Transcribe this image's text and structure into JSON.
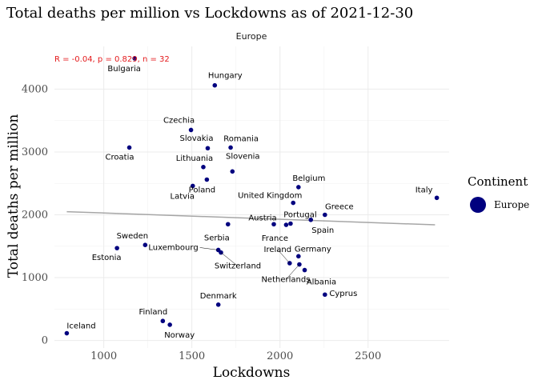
{
  "chart_data": {
    "type": "scatter",
    "title": "Total deaths per million vs Lockdowns as of 2021-12-30",
    "facet": "Europe",
    "xlabel": "Lockdowns",
    "ylabel": "Total deaths per million",
    "xlim": [
      720,
      2960
    ],
    "ylim": [
      -120,
      4680
    ],
    "xticks": [
      1000,
      1500,
      2000,
      2500
    ],
    "yticks": [
      0,
      1000,
      2000,
      3000,
      4000
    ],
    "grid": true,
    "stat_label": "R = -0.04, p = 0.829, n = 32",
    "regression": {
      "x": [
        790,
        2880
      ],
      "y": [
        2050,
        1840
      ],
      "color": "#a6a6a6"
    },
    "point_color": "#00007f",
    "legend": {
      "title": "Continent",
      "entries": [
        "Europe"
      ],
      "position": "right"
    },
    "points": [
      {
        "name": "Iceland",
        "x": 790,
        "y": 115
      },
      {
        "name": "Finland",
        "x": 1335,
        "y": 310
      },
      {
        "name": "Norway",
        "x": 1375,
        "y": 250
      },
      {
        "name": "Denmark",
        "x": 1650,
        "y": 570
      },
      {
        "name": "Estonia",
        "x": 1075,
        "y": 1470
      },
      {
        "name": "Sweden",
        "x": 1235,
        "y": 1520
      },
      {
        "name": "Luxembourg",
        "x": 1650,
        "y": 1440
      },
      {
        "name": "Switzerland",
        "x": 1665,
        "y": 1400
      },
      {
        "name": "Serbia",
        "x": 1705,
        "y": 1850
      },
      {
        "name": "Latvia",
        "x": 1505,
        "y": 2460
      },
      {
        "name": "Poland",
        "x": 1585,
        "y": 2560
      },
      {
        "name": "Lithuania",
        "x": 1565,
        "y": 2760
      },
      {
        "name": "Slovenia",
        "x": 1730,
        "y": 2690
      },
      {
        "name": "Croatia",
        "x": 1145,
        "y": 3070
      },
      {
        "name": "Slovakia",
        "x": 1590,
        "y": 3060
      },
      {
        "name": "Romania",
        "x": 1720,
        "y": 3070
      },
      {
        "name": "Czechia",
        "x": 1495,
        "y": 3350
      },
      {
        "name": "Hungary",
        "x": 1630,
        "y": 4060
      },
      {
        "name": "Bulgaria",
        "x": 1175,
        "y": 4490
      },
      {
        "name": "United Kingdom",
        "x": 2075,
        "y": 2190
      },
      {
        "name": "Belgium",
        "x": 2105,
        "y": 2440
      },
      {
        "name": "Austria",
        "x": 1965,
        "y": 1850
      },
      {
        "name": "France",
        "x": 2035,
        "y": 1840
      },
      {
        "name": "Portugal",
        "x": 2060,
        "y": 1860
      },
      {
        "name": "Spain",
        "x": 2175,
        "y": 1920
      },
      {
        "name": "Greece",
        "x": 2255,
        "y": 2000
      },
      {
        "name": "Italy",
        "x": 2890,
        "y": 2270
      },
      {
        "name": "Germany",
        "x": 2105,
        "y": 1340
      },
      {
        "name": "Ireland",
        "x": 2055,
        "y": 1230
      },
      {
        "name": "Netherlands",
        "x": 2110,
        "y": 1210
      },
      {
        "name": "Albania",
        "x": 2140,
        "y": 1120
      },
      {
        "name": "Cyprus",
        "x": 2255,
        "y": 730
      }
    ]
  }
}
